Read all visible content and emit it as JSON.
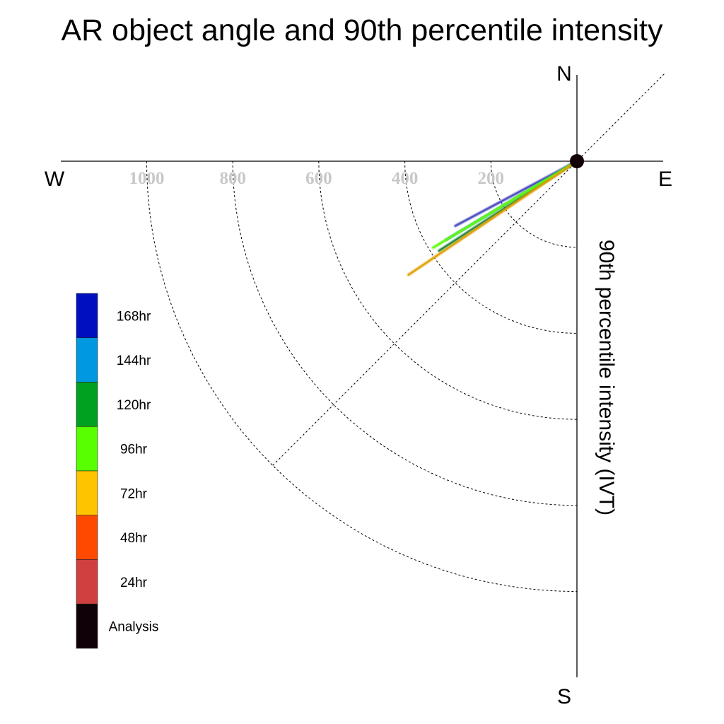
{
  "chart_data": {
    "type": "polar-vector",
    "title": "AR object angle and 90th percentile intensity",
    "radial_axis_label": "90th percentile intensity (IVT)",
    "compass": {
      "north": "N",
      "south": "S",
      "east": "E",
      "west": "W"
    },
    "rlim": [
      0,
      1000
    ],
    "ring_values": [
      200,
      400,
      600,
      800,
      1000
    ],
    "tick_labels": [
      "1000",
      "800",
      "600",
      "400",
      "200"
    ],
    "grid": true,
    "legend": {
      "placement": "left",
      "entries": [
        {
          "label": "168hr",
          "color": "#0010c0"
        },
        {
          "label": "144hr",
          "color": "#0098e0"
        },
        {
          "label": "120hr",
          "color": "#00a020"
        },
        {
          "label": "96hr",
          "color": "#58ff00"
        },
        {
          "label": "72hr",
          "color": "#ffc400"
        },
        {
          "label": "48hr",
          "color": "#ff4800"
        },
        {
          "label": "24hr",
          "color": "#d04040"
        },
        {
          "label": "Analysis",
          "color": "#100008"
        }
      ]
    },
    "series": [
      {
        "name": "168hr",
        "color": "#4a4ac0",
        "angle_deg_from_north_clockwise": 242,
        "intensity": 320
      },
      {
        "name": "144hr",
        "color": "#2080b0",
        "angle_deg_from_north_clockwise": 239,
        "intensity": 355
      },
      {
        "name": "120hr",
        "color": "#208840",
        "angle_deg_from_north_clockwise": 237,
        "intensity": 382
      },
      {
        "name": "96hr",
        "color": "#58ff00",
        "angle_deg_from_north_clockwise": 239,
        "intensity": 390
      },
      {
        "name": "72hr",
        "color": "#e0a000",
        "angle_deg_from_north_clockwise": 236,
        "intensity": 472
      }
    ]
  }
}
